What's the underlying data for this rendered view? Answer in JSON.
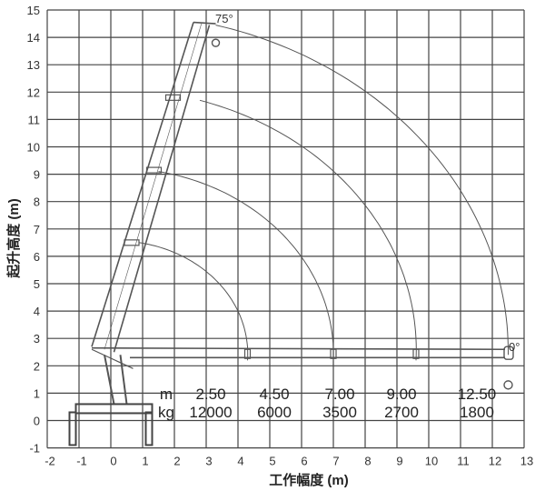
{
  "title": "",
  "x_axis": {
    "label": "工作幅度 (m)",
    "range": [
      -2,
      13
    ],
    "ticks": [
      "-2",
      "-1",
      "0",
      "1",
      "2",
      "3",
      "4",
      "5",
      "6",
      "7",
      "8",
      "9",
      "10",
      "11",
      "12",
      "13"
    ]
  },
  "y_axis": {
    "label": "起升高度 (m)",
    "range": [
      -1,
      15
    ],
    "ticks": [
      "-1",
      "0",
      "1",
      "2",
      "3",
      "4",
      "5",
      "6",
      "7",
      "8",
      "9",
      "10",
      "11",
      "12",
      "13",
      "14",
      "15"
    ]
  },
  "grid": true,
  "angle_labels": {
    "max": "75°",
    "min": "0°"
  },
  "load_table": {
    "radius_unit": "m",
    "load_unit": "kg",
    "radius": [
      "2.50",
      "4.50",
      "7.00",
      "9.00",
      "12.50"
    ],
    "load": [
      "12000",
      "6000",
      "3500",
      "2700",
      "1800"
    ]
  },
  "colors": {
    "line": "#555555",
    "grid": "#444444"
  }
}
